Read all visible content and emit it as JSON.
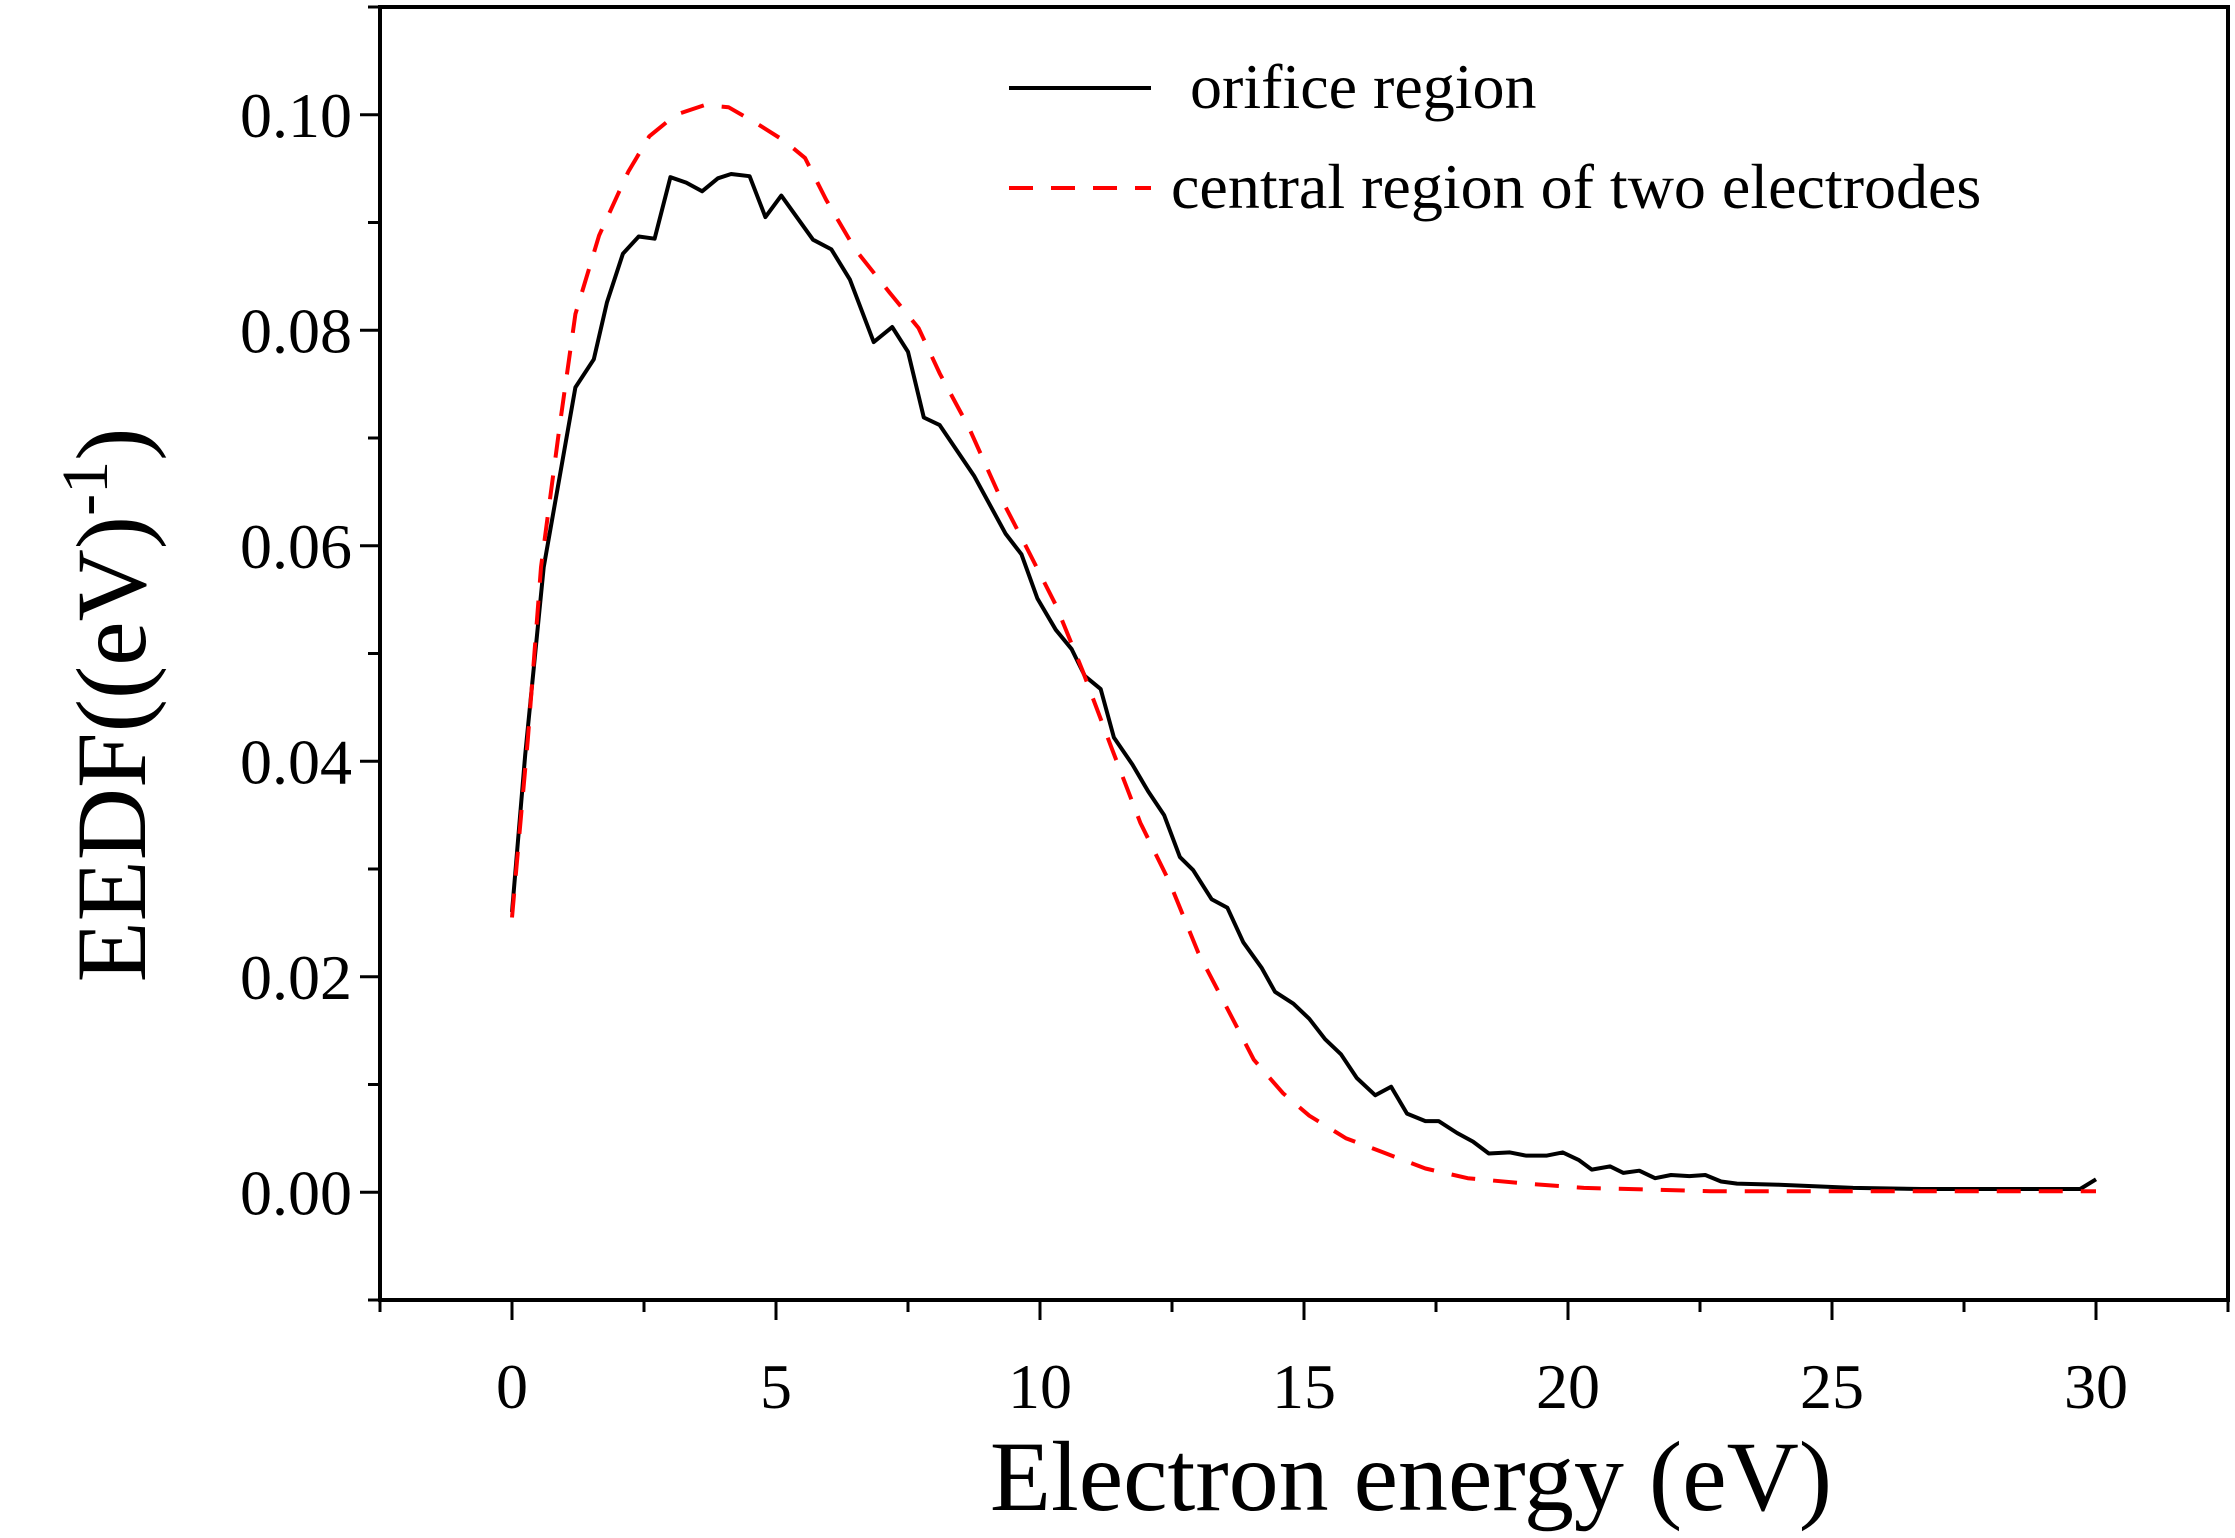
{
  "chart_data": {
    "type": "line",
    "title": "",
    "xlabel": "Electron energy (eV)",
    "ylabel": {
      "main": "EEDF((eV)",
      "superscript": "-1",
      "close": ")"
    },
    "xlim": [
      -2.5,
      32.5
    ],
    "ylim": [
      -0.01,
      0.11
    ],
    "xticks": [
      0,
      5,
      10,
      15,
      20,
      25,
      30
    ],
    "xtick_labels": [
      "0",
      "5",
      "10",
      "15",
      "20",
      "25",
      "30"
    ],
    "yticks": [
      0,
      0.02,
      0.04,
      0.06,
      0.08,
      0.1
    ],
    "ytick_labels": [
      "0.00",
      "0.02",
      "0.04",
      "0.06",
      "0.08",
      "0.10"
    ],
    "grid": false,
    "legend_position": "top-right",
    "series": [
      {
        "name": "orifice region",
        "color": "#000000",
        "style": "solid",
        "x": [
          0,
          0.25,
          0.6,
          1.2,
          1.55,
          1.8,
          2.1,
          2.4,
          2.7,
          3.0,
          3.3,
          3.6,
          3.9,
          4.15,
          4.5,
          4.8,
          5.1,
          5.7,
          6.05,
          6.4,
          6.85,
          7.2,
          7.5,
          7.8,
          8.1,
          8.75,
          9.35,
          9.65,
          9.95,
          10.3,
          10.6,
          10.85,
          11.15,
          11.4,
          11.75,
          12.05,
          12.35,
          12.65,
          12.9,
          13.25,
          13.55,
          13.85,
          14.2,
          14.45,
          14.8,
          15.1,
          15.4,
          15.7,
          16.0,
          16.35,
          16.65,
          16.95,
          17.3,
          17.55,
          17.9,
          18.2,
          18.5,
          18.9,
          19.2,
          19.6,
          19.9,
          20.2,
          20.45,
          20.8,
          21.05,
          21.35,
          21.65,
          21.95,
          22.3,
          22.6,
          22.9,
          23.2,
          24.0,
          25.4,
          26.7,
          28.1,
          29.7,
          30.0
        ],
        "y": [
          0.026,
          0.0406,
          0.058,
          0.0747,
          0.0773,
          0.0826,
          0.0871,
          0.0887,
          0.0885,
          0.0942,
          0.0937,
          0.0929,
          0.0941,
          0.0945,
          0.0943,
          0.0905,
          0.0925,
          0.0884,
          0.0875,
          0.0847,
          0.0789,
          0.0803,
          0.078,
          0.0719,
          0.0712,
          0.0665,
          0.0611,
          0.0592,
          0.0551,
          0.0522,
          0.0504,
          0.0479,
          0.0467,
          0.0422,
          0.0397,
          0.0372,
          0.035,
          0.0311,
          0.0299,
          0.0272,
          0.0264,
          0.0232,
          0.0208,
          0.0186,
          0.0175,
          0.0161,
          0.0142,
          0.0128,
          0.0106,
          0.009,
          0.0098,
          0.0073,
          0.0066,
          0.0066,
          0.0055,
          0.0047,
          0.0036,
          0.0037,
          0.0034,
          0.0034,
          0.0037,
          0.003,
          0.0021,
          0.0024,
          0.0018,
          0.002,
          0.0013,
          0.0016,
          0.0015,
          0.0016,
          0.001,
          0.0008,
          0.0007,
          0.0004,
          0.0003,
          0.0003,
          0.0003,
          0.0012
        ]
      },
      {
        "name": "central region of two electrodes",
        "color": "#ff0000",
        "style": "dashed",
        "x": [
          0,
          0.3,
          0.55,
          0.9,
          1.2,
          1.65,
          2.2,
          2.6,
          3.1,
          3.65,
          4.1,
          4.6,
          5.15,
          5.55,
          5.95,
          6.5,
          7.15,
          7.7,
          8.1,
          8.65,
          9.2,
          9.75,
          10.3,
          10.8,
          11.35,
          11.9,
          12.45,
          13.0,
          13.5,
          14.05,
          14.6,
          15.1,
          15.8,
          16.5,
          17.3,
          18.1,
          19.2,
          20.3,
          22.7,
          25.4,
          30.0
        ],
        "y": [
          0.0255,
          0.042,
          0.058,
          0.071,
          0.0815,
          0.0888,
          0.0947,
          0.098,
          0.1,
          0.1009,
          0.1007,
          0.0993,
          0.0976,
          0.096,
          0.0921,
          0.0875,
          0.0835,
          0.0802,
          0.076,
          0.071,
          0.065,
          0.0598,
          0.0545,
          0.0485,
          0.0413,
          0.0343,
          0.0288,
          0.0222,
          0.0175,
          0.0123,
          0.0092,
          0.0071,
          0.005,
          0.0037,
          0.0022,
          0.0013,
          0.0008,
          0.0004,
          0.0001,
          0.0001,
          0.0001
        ]
      }
    ]
  }
}
